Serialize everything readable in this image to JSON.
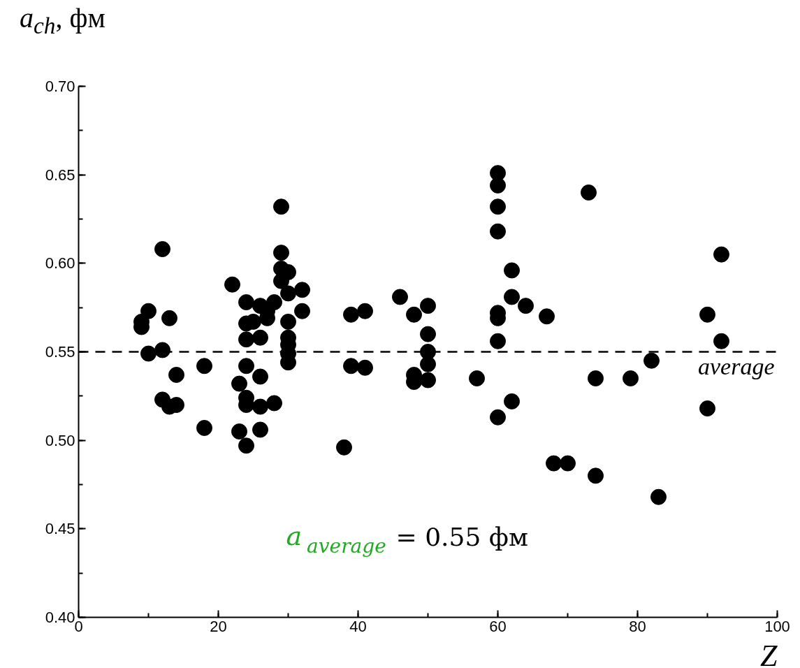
{
  "chart_data": {
    "type": "scatter",
    "ylabel": "a$_{ch}$, фм",
    "xlabel": "Z",
    "x": [
      9,
      9,
      10,
      10,
      12,
      12,
      12,
      13,
      13,
      14,
      14,
      18,
      18,
      22,
      23,
      23,
      24,
      24,
      24,
      24,
      24,
      24,
      24,
      25,
      26,
      26,
      26,
      26,
      26,
      27,
      27,
      28,
      28,
      29,
      29,
      29,
      29,
      30,
      30,
      30,
      30,
      30,
      30,
      30,
      32,
      32,
      38,
      39,
      39,
      41,
      41,
      46,
      48,
      48,
      48,
      50,
      50,
      50,
      50,
      50,
      57,
      60,
      60,
      60,
      60,
      60,
      60,
      60,
      60,
      62,
      62,
      62,
      64,
      67,
      68,
      70,
      73,
      74,
      74,
      79,
      82,
      83,
      90,
      90,
      92,
      92
    ],
    "series": [
      {
        "color": "#000000",
        "values": [
          0.567,
          0.564,
          0.573,
          0.549,
          0.608,
          0.551,
          0.523,
          0.569,
          0.519,
          0.537,
          0.52,
          0.542,
          0.507,
          0.588,
          0.532,
          0.505,
          0.578,
          0.566,
          0.557,
          0.542,
          0.524,
          0.52,
          0.497,
          0.567,
          0.576,
          0.558,
          0.536,
          0.519,
          0.506,
          0.573,
          0.569,
          0.578,
          0.521,
          0.632,
          0.606,
          0.597,
          0.59,
          0.595,
          0.583,
          0.567,
          0.558,
          0.554,
          0.549,
          0.544,
          0.585,
          0.573,
          0.496,
          0.571,
          0.542,
          0.573,
          0.541,
          0.581,
          0.571,
          0.537,
          0.533,
          0.576,
          0.56,
          0.55,
          0.543,
          0.534,
          0.535,
          0.651,
          0.644,
          0.632,
          0.618,
          0.572,
          0.569,
          0.556,
          0.513,
          0.596,
          0.581,
          0.522,
          0.576,
          0.57,
          0.487,
          0.487,
          0.64,
          0.535,
          0.48,
          0.535,
          0.545,
          0.468,
          0.571,
          0.518,
          0.605,
          0.556
        ]
      }
    ],
    "marker": "circle",
    "xlim": [
      0,
      100
    ],
    "xticks": [
      0,
      20,
      40,
      60,
      80,
      100
    ],
    "ylim": [
      0.4,
      0.7
    ],
    "yticks": [
      {
        "value": 0.4,
        "label": "0.40"
      },
      {
        "value": 0.45,
        "label": "0.45"
      },
      {
        "value": 0.5,
        "label": "0.50"
      },
      {
        "value": 0.55,
        "label": "0.55"
      },
      {
        "value": 0.6,
        "label": "0.60"
      },
      {
        "value": 0.65,
        "label": "0.65"
      },
      {
        "value": 0.7,
        "label": "0.70"
      }
    ],
    "ref_lines": [
      {
        "axis": "y",
        "value": 0.55,
        "label": "average",
        "line_style": "dashed",
        "color": "#000000"
      }
    ],
    "annotations": [
      "a$_{average}$ = 0.55 фм"
    ],
    "grid": false
  }
}
